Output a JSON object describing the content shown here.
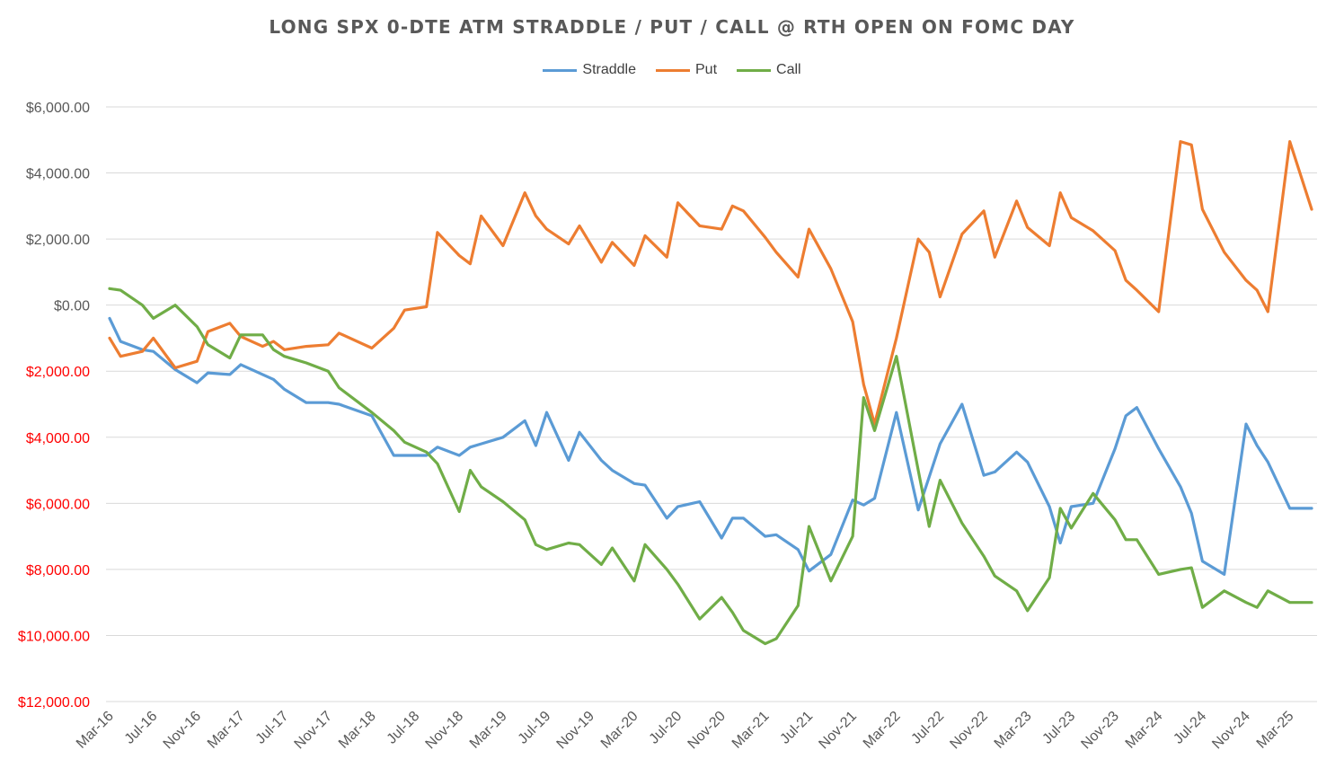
{
  "chart_data": {
    "type": "line",
    "title": "LONG SPX 0-DTE ATM STRADDLE / PUT / CALL @ RTH OPEN ON FOMC DAY",
    "xlabel": "",
    "ylabel": "",
    "ylim": [
      -12000,
      6000
    ],
    "y_ticks": [
      6000,
      4000,
      2000,
      0,
      -2000,
      -4000,
      -6000,
      -8000,
      -10000,
      -12000
    ],
    "y_tick_labels": [
      "$6,000.00",
      "$4,000.00",
      "$2,000.00",
      "$0.00",
      "$2,000.00",
      "$4,000.00",
      "$6,000.00",
      "$8,000.00",
      "$10,000.00",
      "$12,000.00"
    ],
    "negative_label_color": "#ff0000",
    "positive_label_color": "#595959",
    "grid": true,
    "legend_position": "top",
    "x_tick_labels": [
      "Mar-16",
      "Jul-16",
      "Nov-16",
      "Mar-17",
      "Jul-17",
      "Nov-17",
      "Mar-18",
      "Jul-18",
      "Nov-18",
      "Mar-19",
      "Jul-19",
      "Nov-19",
      "Mar-20",
      "Jul-20",
      "Nov-20",
      "Mar-21",
      "Jul-21",
      "Nov-21",
      "Mar-22",
      "Jul-22",
      "Nov-22",
      "Mar-23",
      "Jul-23",
      "Nov-23",
      "Mar-24",
      "Jul-24",
      "Nov-24",
      "Mar-25"
    ],
    "series": [
      {
        "name": "Straddle",
        "color": "#5b9bd5",
        "x": [
          "2016-03",
          "2016-04",
          "2016-06",
          "2016-07",
          "2016-09",
          "2016-11",
          "2016-12",
          "2017-02",
          "2017-03",
          "2017-05",
          "2017-06",
          "2017-07",
          "2017-09",
          "2017-11",
          "2017-12",
          "2018-03",
          "2018-05",
          "2018-06",
          "2018-08",
          "2018-09",
          "2018-11",
          "2018-12",
          "2019-01",
          "2019-03",
          "2019-05",
          "2019-06",
          "2019-07",
          "2019-09",
          "2019-10",
          "2019-12",
          "2020-01",
          "2020-03",
          "2020-04",
          "2020-06",
          "2020-07",
          "2020-09",
          "2020-11",
          "2020-12",
          "2021-01",
          "2021-03",
          "2021-04",
          "2021-06",
          "2021-07",
          "2021-09",
          "2021-11",
          "2021-12",
          "2022-01",
          "2022-03",
          "2022-05",
          "2022-06",
          "2022-07",
          "2022-09",
          "2022-11",
          "2022-12",
          "2023-02",
          "2023-03",
          "2023-05",
          "2023-06",
          "2023-07",
          "2023-09",
          "2023-11",
          "2023-12",
          "2024-01",
          "2024-03",
          "2024-05",
          "2024-06",
          "2024-07",
          "2024-09",
          "2024-11",
          "2024-12",
          "2025-01",
          "2025-03",
          "2025-05"
        ],
        "y": [
          -400,
          -1100,
          -1350,
          -1400,
          -1950,
          -2350,
          -2050,
          -2100,
          -1800,
          -2100,
          -2250,
          -2550,
          -2950,
          -2950,
          -3000,
          -3350,
          -4550,
          -4550,
          -4550,
          -4300,
          -4550,
          -4300,
          -4200,
          -4000,
          -3500,
          -4250,
          -3250,
          -4700,
          -3850,
          -4700,
          -5000,
          -5400,
          -5450,
          -6450,
          -6100,
          -5950,
          -7050,
          -6450,
          -6450,
          -7000,
          -6950,
          -7400,
          -8050,
          -7550,
          -5900,
          -6050,
          -5850,
          -3250,
          -6200,
          -5200,
          -4200,
          -3000,
          -5150,
          -5050,
          -4450,
          -4750,
          -6100,
          -7200,
          -6100,
          -6000,
          -4350,
          -3350,
          -3100,
          -4350,
          -5500,
          -6300,
          -7750,
          -8150,
          -3600,
          -4250,
          -4750,
          -6150,
          -6150
        ]
      },
      {
        "name": "Put",
        "color": "#ed7d31",
        "x": [
          "2016-03",
          "2016-04",
          "2016-06",
          "2016-07",
          "2016-09",
          "2016-11",
          "2016-12",
          "2017-02",
          "2017-03",
          "2017-05",
          "2017-06",
          "2017-07",
          "2017-09",
          "2017-11",
          "2017-12",
          "2018-03",
          "2018-05",
          "2018-06",
          "2018-08",
          "2018-09",
          "2018-11",
          "2018-12",
          "2019-01",
          "2019-03",
          "2019-05",
          "2019-06",
          "2019-07",
          "2019-09",
          "2019-10",
          "2019-12",
          "2020-01",
          "2020-03",
          "2020-04",
          "2020-06",
          "2020-07",
          "2020-09",
          "2020-11",
          "2020-12",
          "2021-01",
          "2021-03",
          "2021-04",
          "2021-06",
          "2021-07",
          "2021-09",
          "2021-11",
          "2021-12",
          "2022-01",
          "2022-03",
          "2022-05",
          "2022-06",
          "2022-07",
          "2022-09",
          "2022-11",
          "2022-12",
          "2023-02",
          "2023-03",
          "2023-05",
          "2023-06",
          "2023-07",
          "2023-09",
          "2023-11",
          "2023-12",
          "2024-01",
          "2024-03",
          "2024-05",
          "2024-06",
          "2024-07",
          "2024-09",
          "2024-11",
          "2024-12",
          "2025-01",
          "2025-03",
          "2025-05"
        ],
        "y": [
          -1000,
          -1550,
          -1400,
          -1000,
          -1900,
          -1700,
          -800,
          -550,
          -950,
          -1250,
          -1100,
          -1350,
          -1250,
          -1200,
          -850,
          -1300,
          -700,
          -150,
          -50,
          2200,
          1500,
          1250,
          2700,
          1800,
          3400,
          2700,
          2300,
          1850,
          2400,
          1300,
          1900,
          1200,
          2100,
          1450,
          3100,
          2400,
          2300,
          3000,
          2850,
          2050,
          1600,
          850,
          2300,
          1100,
          -500,
          -2400,
          -3600,
          -1000,
          2000,
          1600,
          250,
          2150,
          2850,
          1450,
          3150,
          2350,
          1800,
          3400,
          2650,
          2250,
          1650,
          750,
          450,
          -200,
          4950,
          4850,
          2900,
          1600,
          750,
          450,
          -200,
          4950,
          2900
        ]
      },
      {
        "name": "Call",
        "color": "#70ad47",
        "x": [
          "2016-03",
          "2016-04",
          "2016-06",
          "2016-07",
          "2016-09",
          "2016-11",
          "2016-12",
          "2017-02",
          "2017-03",
          "2017-05",
          "2017-06",
          "2017-07",
          "2017-09",
          "2017-11",
          "2017-12",
          "2018-03",
          "2018-05",
          "2018-06",
          "2018-08",
          "2018-09",
          "2018-11",
          "2018-12",
          "2019-01",
          "2019-03",
          "2019-05",
          "2019-06",
          "2019-07",
          "2019-09",
          "2019-10",
          "2019-12",
          "2020-01",
          "2020-03",
          "2020-04",
          "2020-06",
          "2020-07",
          "2020-09",
          "2020-11",
          "2020-12",
          "2021-01",
          "2021-03",
          "2021-04",
          "2021-06",
          "2021-07",
          "2021-09",
          "2021-11",
          "2021-12",
          "2022-01",
          "2022-03",
          "2022-05",
          "2022-06",
          "2022-07",
          "2022-09",
          "2022-11",
          "2022-12",
          "2023-02",
          "2023-03",
          "2023-05",
          "2023-06",
          "2023-07",
          "2023-09",
          "2023-11",
          "2023-12",
          "2024-01",
          "2024-03",
          "2024-05",
          "2024-06",
          "2024-07",
          "2024-09",
          "2024-11",
          "2024-12",
          "2025-01",
          "2025-03",
          "2025-05"
        ],
        "y": [
          500,
          450,
          0,
          -400,
          0,
          -650,
          -1200,
          -1600,
          -900,
          -900,
          -1350,
          -1550,
          -1750,
          -2000,
          -2500,
          -3250,
          -3800,
          -4150,
          -4450,
          -4800,
          -6250,
          -5000,
          -5500,
          -5950,
          -6500,
          -7250,
          -7400,
          -7200,
          -7250,
          -7850,
          -7350,
          -8350,
          -7250,
          -8000,
          -8450,
          -9500,
          -8850,
          -9300,
          -9850,
          -10250,
          -10100,
          -9100,
          -6700,
          -8350,
          -7000,
          -2800,
          -3800,
          -1550,
          -5000,
          -6700,
          -5300,
          -6600,
          -7600,
          -8200,
          -8650,
          -9250,
          -8250,
          -6150,
          -6750,
          -5700,
          -6500,
          -7100,
          -7100,
          -8150,
          -8000,
          -7950,
          -9150,
          -8650,
          -9000,
          -9150,
          -8650,
          -9000,
          -9000
        ]
      }
    ]
  }
}
